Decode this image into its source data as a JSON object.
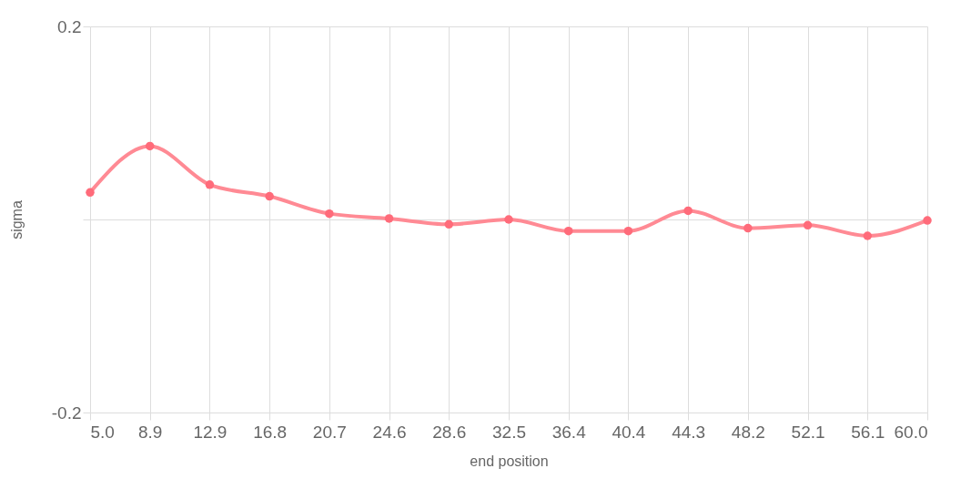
{
  "chart_data": {
    "type": "line",
    "xlabel": "end position",
    "ylabel": "sigma",
    "categories": [
      "5.0",
      "8.9",
      "12.9",
      "16.8",
      "20.7",
      "24.6",
      "28.6",
      "32.5",
      "36.4",
      "40.4",
      "44.3",
      "48.2",
      "52.1",
      "56.1",
      "60.0"
    ],
    "series": [
      {
        "color": "#ff8a94",
        "values": [
          0.028,
          0.076,
          0.036,
          0.024,
          0.006,
          0.001,
          -0.005,
          0.0,
          -0.012,
          -0.012,
          0.009,
          -0.009,
          -0.006,
          -0.017,
          -0.001
        ]
      }
    ],
    "ylim": [
      -0.2,
      0.2
    ],
    "yticks": [
      -0.2,
      {
        "value": 0,
        "label": null
      },
      0.2
    ],
    "grid": true,
    "marker": "circle",
    "line_style": "solid"
  }
}
